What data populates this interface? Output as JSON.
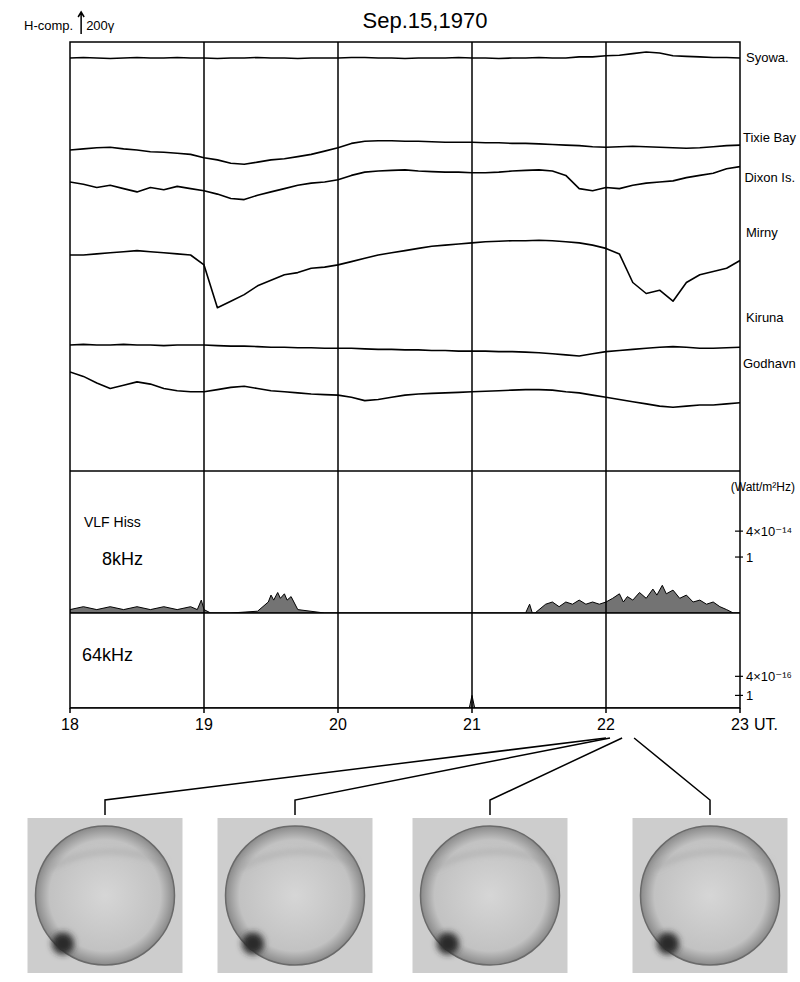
{
  "chart_data": [
    {
      "type": "line",
      "title": "Sep.15,1970",
      "scale_bar": {
        "title": "H-comp.",
        "value": 200,
        "value_label": "200γ"
      },
      "x": [
        18.0,
        18.1,
        18.2,
        18.3,
        18.4,
        18.5,
        18.6,
        18.7,
        18.8,
        18.9,
        19.0,
        19.1,
        19.2,
        19.3,
        19.4,
        19.5,
        19.6,
        19.7,
        19.8,
        19.9,
        20.0,
        20.1,
        20.2,
        20.3,
        20.4,
        20.5,
        20.6,
        20.7,
        20.8,
        20.9,
        21.0,
        21.1,
        21.2,
        21.3,
        21.4,
        21.5,
        21.6,
        21.7,
        21.8,
        21.9,
        22.0,
        22.1,
        22.2,
        22.3,
        22.4,
        22.5,
        22.6,
        22.7,
        22.8,
        22.9,
        23.0
      ],
      "xlim": [
        18,
        23
      ],
      "xticks": [
        18,
        19,
        20,
        21,
        22,
        23
      ],
      "xlabel": "UT.",
      "grid": true,
      "tick_labels": "x",
      "color": "#000000",
      "series": [
        {
          "name": "Syowa.",
          "values": [
            0,
            5,
            0,
            -5,
            0,
            5,
            0,
            0,
            5,
            0,
            0,
            -5,
            0,
            0,
            5,
            0,
            0,
            -5,
            0,
            0,
            0,
            5,
            5,
            0,
            0,
            -5,
            0,
            0,
            0,
            5,
            0,
            0,
            -5,
            0,
            0,
            5,
            0,
            0,
            10,
            10,
            20,
            25,
            40,
            55,
            45,
            20,
            15,
            10,
            5,
            5,
            0
          ]
        },
        {
          "name": "Tixie Bay",
          "values": [
            0,
            10,
            20,
            25,
            10,
            0,
            -15,
            -20,
            -30,
            -40,
            -70,
            -90,
            -120,
            -130,
            -110,
            -90,
            -80,
            -60,
            -40,
            -10,
            20,
            60,
            80,
            85,
            85,
            80,
            80,
            75,
            70,
            70,
            70,
            65,
            65,
            60,
            60,
            55,
            50,
            45,
            40,
            30,
            25,
            30,
            35,
            30,
            25,
            20,
            15,
            20,
            30,
            40,
            45
          ]
        },
        {
          "name": "Dixon Is.",
          "values": [
            0,
            -20,
            -50,
            -30,
            -60,
            -90,
            -50,
            -70,
            -40,
            -60,
            -80,
            -110,
            -150,
            -160,
            -120,
            -90,
            -60,
            -30,
            -10,
            0,
            20,
            60,
            90,
            100,
            105,
            110,
            100,
            95,
            90,
            90,
            85,
            85,
            90,
            100,
            105,
            110,
            100,
            60,
            -60,
            -80,
            -50,
            -60,
            -30,
            -10,
            0,
            10,
            40,
            60,
            80,
            120,
            140
          ]
        },
        {
          "name": "Mirny",
          "values": [
            0,
            0,
            10,
            20,
            30,
            40,
            30,
            20,
            10,
            0,
            -90,
            -480,
            -420,
            -360,
            -280,
            -230,
            -180,
            -160,
            -120,
            -110,
            -90,
            -60,
            -30,
            0,
            20,
            40,
            60,
            80,
            90,
            100,
            110,
            120,
            125,
            130,
            130,
            135,
            130,
            120,
            110,
            90,
            60,
            10,
            -250,
            -350,
            -320,
            -420,
            -250,
            -180,
            -150,
            -120,
            -50
          ]
        },
        {
          "name": "Kiruna",
          "values": [
            0,
            5,
            0,
            0,
            5,
            0,
            0,
            -5,
            0,
            0,
            0,
            -5,
            -10,
            -10,
            -15,
            -20,
            -20,
            -25,
            -25,
            -30,
            -30,
            -30,
            -35,
            -40,
            -40,
            -45,
            -45,
            -50,
            -50,
            -55,
            -55,
            -55,
            -60,
            -60,
            -65,
            -70,
            -80,
            -90,
            -100,
            -80,
            -60,
            -50,
            -40,
            -30,
            -20,
            -15,
            -20,
            -30,
            -30,
            -25,
            -20
          ]
        },
        {
          "name": "Godhavn",
          "values": [
            0,
            -40,
            -100,
            -150,
            -120,
            -90,
            -110,
            -150,
            -170,
            -180,
            -180,
            -160,
            -140,
            -130,
            -150,
            -170,
            -180,
            -190,
            -200,
            -205,
            -210,
            -230,
            -260,
            -250,
            -230,
            -210,
            -200,
            -195,
            -190,
            -185,
            -180,
            -175,
            -170,
            -165,
            -160,
            -160,
            -165,
            -180,
            -190,
            -210,
            -230,
            -250,
            -270,
            -290,
            -310,
            -320,
            -310,
            -300,
            -300,
            -290,
            -280
          ]
        }
      ]
    },
    {
      "type": "area",
      "title": "VLF Hiss",
      "ylabel": "(Watt/m²Hz)",
      "log": "y",
      "ylim": [
        5e-16,
        1e-12
      ],
      "yticks": [
        {
          "value": 4e-14,
          "label": "4×10⁻¹⁴"
        },
        {
          "value": 1e-14,
          "label": "1"
        }
      ],
      "x": [
        18.0,
        18.1,
        18.2,
        18.3,
        18.4,
        18.5,
        18.6,
        18.7,
        18.8,
        18.9,
        18.95,
        18.98,
        19.0,
        19.05,
        19.2,
        19.4,
        19.48,
        19.5,
        19.52,
        19.55,
        19.57,
        19.6,
        19.62,
        19.65,
        19.7,
        19.9,
        20.2,
        20.6,
        21.0,
        21.4,
        21.43,
        21.45,
        21.47,
        21.55,
        21.6,
        21.65,
        21.7,
        21.75,
        21.8,
        21.85,
        21.9,
        21.95,
        22.0,
        22.05,
        22.1,
        22.13,
        22.16,
        22.2,
        22.25,
        22.3,
        22.35,
        22.38,
        22.42,
        22.45,
        22.5,
        22.55,
        22.6,
        22.65,
        22.7,
        22.75,
        22.8,
        22.85,
        22.9,
        22.95,
        23.0
      ],
      "series": [
        {
          "name": "8kHz",
          "color": "#000000",
          "values": [
            6e-16,
            7e-16,
            6e-16,
            7e-16,
            6e-16,
            7e-16,
            6e-16,
            7e-16,
            6e-16,
            7e-16,
            6e-16,
            1e-15,
            6e-16,
            5e-16,
            5e-16,
            5.5e-16,
            9e-16,
            1.3e-15,
            1e-15,
            1.5e-15,
            1.1e-15,
            1.4e-15,
            1e-15,
            1.2e-15,
            6e-16,
            5e-16,
            5e-16,
            5e-16,
            5e-16,
            5e-16,
            8e-16,
            5e-16,
            5e-16,
            8e-16,
            9e-16,
            7e-16,
            9e-16,
            8e-16,
            1e-15,
            8e-16,
            9e-16,
            8e-16,
            9e-16,
            1.1e-15,
            1.4e-15,
            9e-16,
            1.2e-15,
            1e-15,
            1.5e-15,
            1.1e-15,
            1.8e-15,
            1.3e-15,
            2.2e-15,
            1.4e-15,
            1.7e-15,
            1.1e-15,
            1.3e-15,
            9e-16,
            1e-15,
            8e-16,
            9e-16,
            7e-16,
            6e-16,
            5e-16,
            5e-16
          ]
        }
      ]
    },
    {
      "type": "area",
      "log": "y",
      "ylim": [
        4e-17,
        4e-14
      ],
      "yticks": [
        {
          "value": 4e-16,
          "label": "4×10⁻¹⁶"
        },
        {
          "value": 1e-16,
          "label": "1"
        }
      ],
      "x": [
        18.0,
        20.98,
        21.0,
        21.02,
        23.0
      ],
      "series": [
        {
          "name": "64kHz",
          "color": "#000000",
          "values": [
            4e-17,
            4e-17,
            1e-16,
            4e-17,
            4e-17
          ]
        }
      ]
    }
  ],
  "photos": {
    "times": [
      22.0,
      22.03,
      22.12,
      22.21
    ]
  }
}
